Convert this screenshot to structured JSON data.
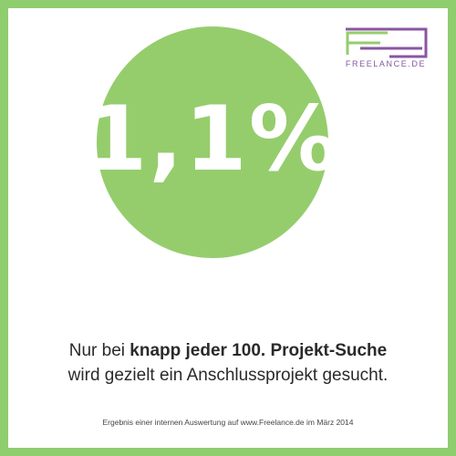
{
  "brand": {
    "name": "FREELANCE.DE",
    "colors": {
      "frame": "#8fce6f",
      "circle": "#95cd6d",
      "logo_green": "#95cd6d",
      "logo_purple": "#8a56a3"
    }
  },
  "headline": {
    "value": "1,1%"
  },
  "statement": {
    "line1_prefix": "Nur bei ",
    "line1_bold": "knapp jeder 100. Projekt-Suche",
    "line2": "wird gezielt ein Anschlussprojekt gesucht."
  },
  "footnote": {
    "text": "Ergebnis einer internen Auswertung auf www.Freelance.de im März 2014"
  }
}
